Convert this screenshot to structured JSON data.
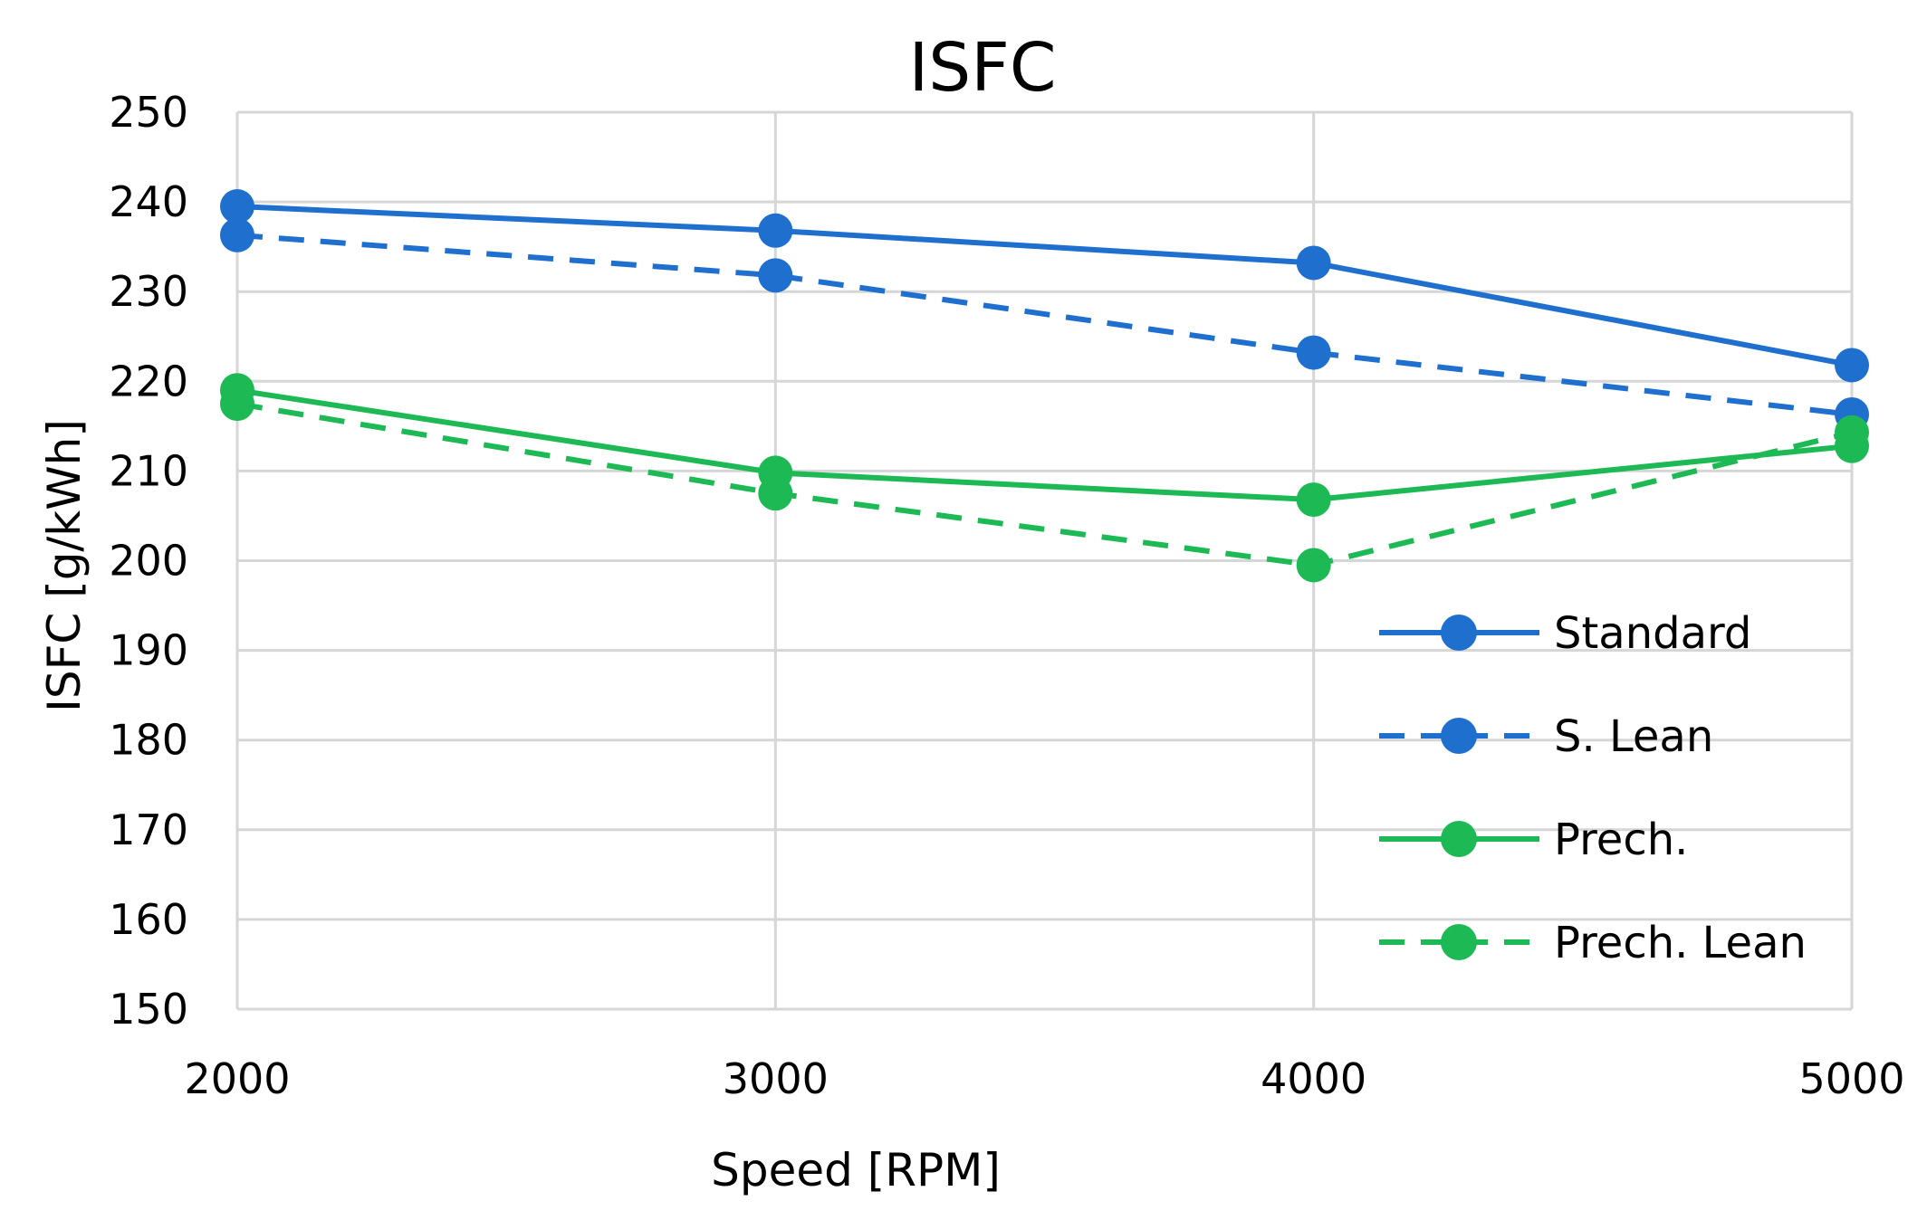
{
  "chart_data": {
    "type": "line",
    "title": "ISFC",
    "xlabel": "Speed [RPM]",
    "ylabel": "ISFC [g/kWh]",
    "x": [
      2000,
      3000,
      4000,
      5000
    ],
    "x_tick_labels": [
      "2000",
      "3000",
      "4000",
      "5000"
    ],
    "ylim": [
      150,
      250
    ],
    "y_ticks": [
      150,
      160,
      170,
      180,
      190,
      200,
      210,
      220,
      230,
      240,
      250
    ],
    "y_tick_labels": [
      "150",
      "160",
      "170",
      "180",
      "190",
      "200",
      "210",
      "220",
      "230",
      "240",
      "250"
    ],
    "grid": true,
    "legend_position": "bottom-right inside",
    "series": [
      {
        "name": "Standard",
        "color": "#1f6fcf",
        "dashed": false,
        "values": [
          239.5,
          236.8,
          233.2,
          221.8
        ]
      },
      {
        "name": "S. Lean",
        "color": "#1f6fcf",
        "dashed": true,
        "values": [
          236.3,
          231.8,
          223.2,
          216.3
        ]
      },
      {
        "name": "Prech.",
        "color": "#1db954",
        "dashed": false,
        "values": [
          219.0,
          209.8,
          206.8,
          212.8
        ]
      },
      {
        "name": "Prech. Lean",
        "color": "#1db954",
        "dashed": true,
        "values": [
          217.5,
          207.5,
          199.5,
          214.3
        ]
      }
    ]
  }
}
